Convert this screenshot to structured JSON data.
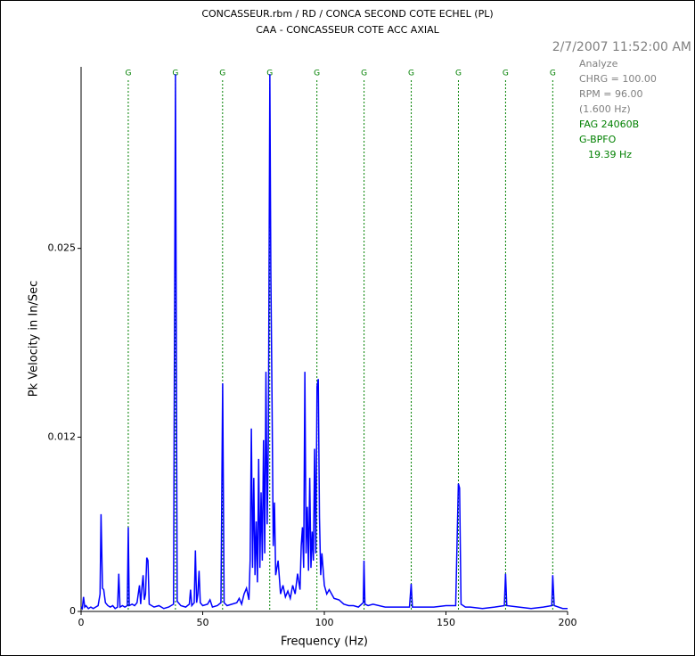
{
  "chart_data": {
    "type": "line",
    "title": "CONCASSEUR.rbm / RD / CONCA SECOND COTE ECHEL (PL)",
    "subtitle": "CAA - CONCASSEUR COTE ACC AXIAL",
    "timestamp": "2/7/2007 11:52:00 AM",
    "info": [
      "Analyze",
      "CHRG = 100.00",
      "RPM = 96.00",
      "(1.600 Hz)"
    ],
    "fault": [
      "FAG 24060B",
      "G-BPFO",
      "19.39 Hz"
    ],
    "x_label": "Frequency (Hz)",
    "y_label": "Pk Velocity in In/Sec",
    "color": "#0000ff",
    "marker_color": "#008000",
    "markers": {
      "label": "G",
      "x": [
        19.39,
        38.78,
        58.17,
        77.56,
        96.95,
        116.34,
        135.73,
        155.12,
        174.51,
        193.9
      ]
    },
    "xlim": [
      0,
      200
    ],
    "xticks": [
      0,
      50,
      100,
      150,
      200
    ],
    "ylim": [
      0,
      0.0375
    ],
    "yticks": [
      0,
      0.012,
      0.025
    ],
    "x": [
      0,
      0.5,
      1,
      1.5,
      2,
      3,
      4,
      5,
      6,
      7,
      7.8,
      8.2,
      8.8,
      9.3,
      10,
      11,
      12,
      13,
      14,
      15,
      15.5,
      16,
      17,
      18,
      19,
      19.4,
      19.8,
      21,
      22,
      23,
      24,
      24.5,
      25,
      25.5,
      26,
      26.5,
      27,
      27.5,
      28,
      30,
      32,
      34,
      36,
      38,
      38.8,
      39.5,
      41,
      43,
      44.5,
      45,
      45.5,
      46.5,
      47,
      47.5,
      48,
      48.5,
      49,
      50,
      52,
      53,
      54,
      56,
      57.5,
      58.2,
      58.8,
      60,
      62,
      64,
      65,
      66,
      67,
      68,
      69,
      69.5,
      70,
      70.5,
      71,
      71.5,
      72,
      72.5,
      73,
      73.5,
      74,
      74.5,
      75,
      75.5,
      76,
      76.5,
      77,
      77.6,
      78,
      78.5,
      79,
      79.5,
      80,
      81,
      82,
      83,
      84,
      85,
      86,
      87,
      88,
      89,
      90,
      90.5,
      91,
      91.5,
      92,
      92.5,
      93,
      93.5,
      94,
      94.5,
      95,
      95.5,
      96,
      96.5,
      97,
      97.5,
      98,
      98.5,
      99,
      100,
      101,
      102,
      104,
      106,
      108,
      110,
      112,
      114,
      116,
      116.3,
      116.7,
      118,
      120,
      125,
      130,
      135,
      135.7,
      136.2,
      140,
      145,
      150,
      154,
      155.1,
      155.6,
      156.2,
      158,
      160,
      165,
      170,
      174,
      174.5,
      175,
      180,
      185,
      190,
      193.5,
      193.9,
      194.5,
      198,
      200
    ],
    "values": [
      0.0003,
      0.0002,
      0.001,
      0.0003,
      0.0004,
      0.0002,
      0.0003,
      0.0002,
      0.0003,
      0.0004,
      0.0012,
      0.0067,
      0.0016,
      0.0015,
      0.0006,
      0.0004,
      0.0003,
      0.0004,
      0.0002,
      0.0003,
      0.0026,
      0.0003,
      0.0004,
      0.0003,
      0.0004,
      0.0058,
      0.0004,
      0.0005,
      0.0004,
      0.0006,
      0.0018,
      0.0005,
      0.0016,
      0.0025,
      0.0008,
      0.0012,
      0.0037,
      0.0035,
      0.0005,
      0.0003,
      0.0004,
      0.0002,
      0.0003,
      0.0005,
      0.037,
      0.0007,
      0.0004,
      0.0003,
      0.0005,
      0.0015,
      0.0004,
      0.0006,
      0.0042,
      0.0006,
      0.0012,
      0.0028,
      0.0006,
      0.0004,
      0.0005,
      0.0008,
      0.0003,
      0.0004,
      0.0006,
      0.0157,
      0.0006,
      0.0004,
      0.0005,
      0.0006,
      0.0009,
      0.0005,
      0.0012,
      0.0016,
      0.0008,
      0.0035,
      0.0126,
      0.003,
      0.0092,
      0.0025,
      0.0062,
      0.002,
      0.0105,
      0.003,
      0.0082,
      0.0035,
      0.0118,
      0.004,
      0.0165,
      0.006,
      0.012,
      0.037,
      0.0235,
      0.0145,
      0.0045,
      0.0075,
      0.0025,
      0.0035,
      0.0012,
      0.0018,
      0.001,
      0.0014,
      0.0009,
      0.0018,
      0.0012,
      0.0026,
      0.0015,
      0.0045,
      0.0058,
      0.003,
      0.0165,
      0.004,
      0.0072,
      0.0028,
      0.0092,
      0.003,
      0.0055,
      0.0035,
      0.0112,
      0.004,
      0.0155,
      0.016,
      0.0065,
      0.0025,
      0.004,
      0.0018,
      0.0012,
      0.0015,
      0.0009,
      0.0008,
      0.0005,
      0.0004,
      0.0004,
      0.0003,
      0.0006,
      0.0035,
      0.0005,
      0.0004,
      0.0005,
      0.0003,
      0.0003,
      0.0003,
      0.0019,
      0.0003,
      0.0003,
      0.0003,
      0.0004,
      0.0004,
      0.0088,
      0.0085,
      0.0005,
      0.0003,
      0.0003,
      0.0002,
      0.0003,
      0.0004,
      0.0026,
      0.0004,
      0.0003,
      0.0002,
      0.0003,
      0.0004,
      0.0025,
      0.0004,
      0.0002,
      0.0002
    ]
  }
}
